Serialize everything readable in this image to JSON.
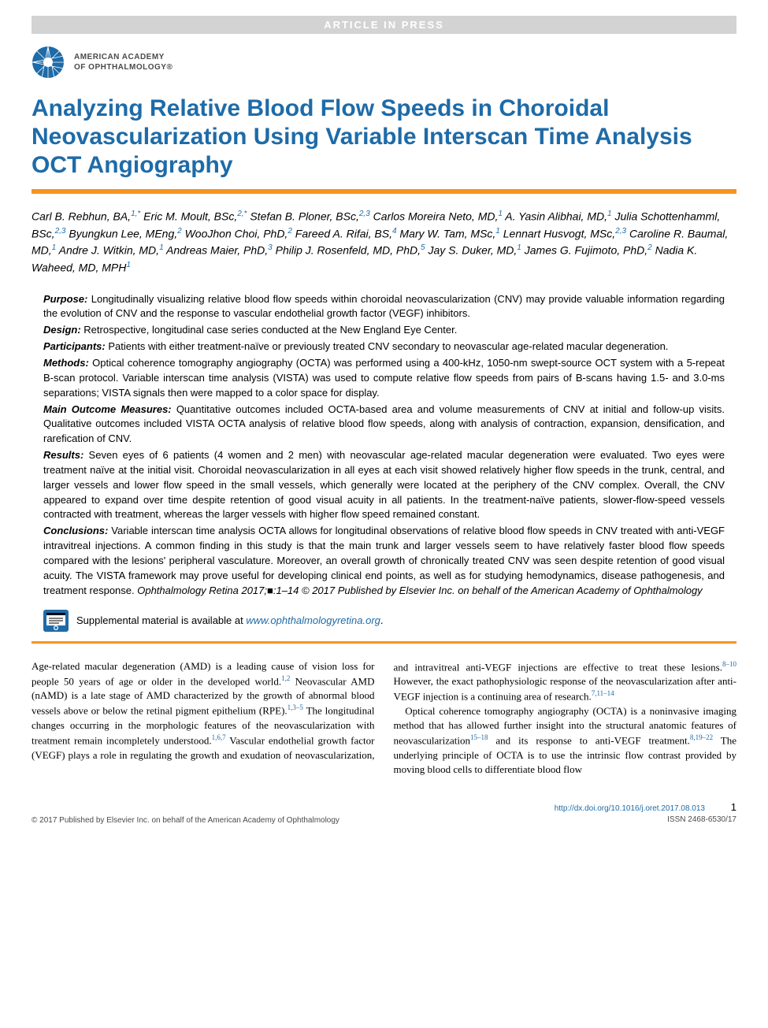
{
  "banner": "ARTICLE IN PRESS",
  "org": {
    "line1": "AMERICAN ACADEMY",
    "line2": "OF OPHTHALMOLOGY®"
  },
  "title": "Analyzing Relative Blood Flow Speeds in Choroidal Neovascularization Using Variable Interscan Time Analysis OCT Angiography",
  "authors_html": "Carl B. Rebhun, BA,<span class=\"aff\">1,*</span> Eric M. Moult, BSc,<span class=\"aff\">2,*</span> Stefan B. Ploner, BSc,<span class=\"aff\">2,3</span> Carlos Moreira Neto, MD,<span class=\"aff\">1</span> A. Yasin Alibhai, MD,<span class=\"aff\">1</span> Julia Schottenhamml, BSc,<span class=\"aff\">2,3</span> Byungkun Lee, MEng,<span class=\"aff\">2</span> WooJhon Choi, PhD,<span class=\"aff\">2</span> Fareed A. Rifai, BS,<span class=\"aff\">4</span> Mary W. Tam, MSc,<span class=\"aff\">1</span> Lennart Husvogt, MSc,<span class=\"aff\">2,3</span> Caroline R. Baumal, MD,<span class=\"aff\">1</span> Andre J. Witkin, MD,<span class=\"aff\">1</span> Andreas Maier, PhD,<span class=\"aff\">3</span> Philip J. Rosenfeld, MD, PhD,<span class=\"aff\">5</span> Jay S. Duker, MD,<span class=\"aff\">1</span> James G. Fujimoto, PhD,<span class=\"aff\">2</span> Nadia K. Waheed, MD, MPH<span class=\"aff\">1</span>",
  "abstract": {
    "purpose": {
      "label": "Purpose:",
      "text": " Longitudinally visualizing relative blood flow speeds within choroidal neovascularization (CNV) may provide valuable information regarding the evolution of CNV and the response to vascular endothelial growth factor (VEGF) inhibitors."
    },
    "design": {
      "label": "Design:",
      "text": " Retrospective, longitudinal case series conducted at the New England Eye Center."
    },
    "participants": {
      "label": "Participants:",
      "text": " Patients with either treatment-naïve or previously treated CNV secondary to neovascular age-related macular degeneration."
    },
    "methods": {
      "label": "Methods:",
      "text": " Optical coherence tomography angiography (OCTA) was performed using a 400-kHz, 1050-nm swept-source OCT system with a 5-repeat B-scan protocol. Variable interscan time analysis (VISTA) was used to compute relative flow speeds from pairs of B-scans having 1.5- and 3.0-ms separations; VISTA signals then were mapped to a color space for display."
    },
    "outcomes": {
      "label": "Main Outcome Measures:",
      "text": " Quantitative outcomes included OCTA-based area and volume measurements of CNV at initial and follow-up visits. Qualitative outcomes included VISTA OCTA analysis of relative blood flow speeds, along with analysis of contraction, expansion, densification, and rarefication of CNV."
    },
    "results": {
      "label": "Results:",
      "text": " Seven eyes of 6 patients (4 women and 2 men) with neovascular age-related macular degeneration were evaluated. Two eyes were treatment naïve at the initial visit. Choroidal neovascularization in all eyes at each visit showed relatively higher flow speeds in the trunk, central, and larger vessels and lower flow speed in the small vessels, which generally were located at the periphery of the CNV complex. Overall, the CNV appeared to expand over time despite retention of good visual acuity in all patients. In the treatment-naïve patients, slower-flow-speed vessels contracted with treatment, whereas the larger vessels with higher flow speed remained constant."
    },
    "conclusions": {
      "label": "Conclusions:",
      "text": " Variable interscan time analysis OCTA allows for longitudinal observations of relative blood flow speeds in CNV treated with anti-VEGF intravitreal injections. A common finding in this study is that the main trunk and larger vessels seem to have relatively faster blood flow speeds compared with the lesions' peripheral vasculature. Moreover, an overall growth of chronically treated CNV was seen despite retention of good visual acuity. The VISTA framework may prove useful for developing clinical end points, as well as for studying hemodynamics, disease pathogenesis, and treatment response. ",
      "journal": "Ophthalmology Retina 2017;■:1–14 © 2017 Published by Elsevier Inc. on behalf of the American Academy of Ophthalmology"
    }
  },
  "supplement": {
    "text": "Supplemental material is available at ",
    "link": "www.ophthalmologyretina.org",
    "period": "."
  },
  "body": {
    "p1_html": "Age-related macular degeneration (AMD) is a leading cause of vision loss for people 50 years of age or older in the developed world.<span class=\"ref\">1,2</span> Neovascular AMD (nAMD) is a late stage of AMD characterized by the growth of abnormal blood vessels above or below the retinal pigment epithelium (RPE).<span class=\"ref\">1,3–5</span> The longitudinal changes occurring in the morphologic features of the neovascularization with treatment remain incompletely understood.<span class=\"ref\">1,6,7</span> Vascular endothelial growth factor (VEGF) plays a role in regulating the growth and exudation of neovascularization, and intravitreal anti-VEGF injections are effective to treat these lesions.<span class=\"ref\">8–10</span> However, the exact pathophysiologic response of the neovascularization after anti-VEGF injection is a continuing area of research.<span class=\"ref\">7,11–14</span>",
    "p2_html": "&nbsp;&nbsp;&nbsp;Optical coherence tomography angiography (OCTA) is a noninvasive imaging method that has allowed further insight into the structural anatomic features of neovascularization<span class=\"ref\">15–18</span> and its response to anti-VEGF treatment.<span class=\"ref\">8,19–22</span> The underlying principle of OCTA is to use the intrinsic flow contrast provided by moving blood cells to differentiate blood flow"
  },
  "footer": {
    "copyright": "© 2017 Published by Elsevier Inc. on behalf of the American Academy of Ophthalmology",
    "doi": "http://dx.doi.org/10.1016/j.oret.2017.08.013",
    "issn": "ISSN 2468-6530/17",
    "page": "1"
  },
  "colors": {
    "title_blue": "#1e6ba8",
    "orange": "#f7941e",
    "banner_gray": "#d3d3d3",
    "link_blue": "#1e6ba8"
  }
}
